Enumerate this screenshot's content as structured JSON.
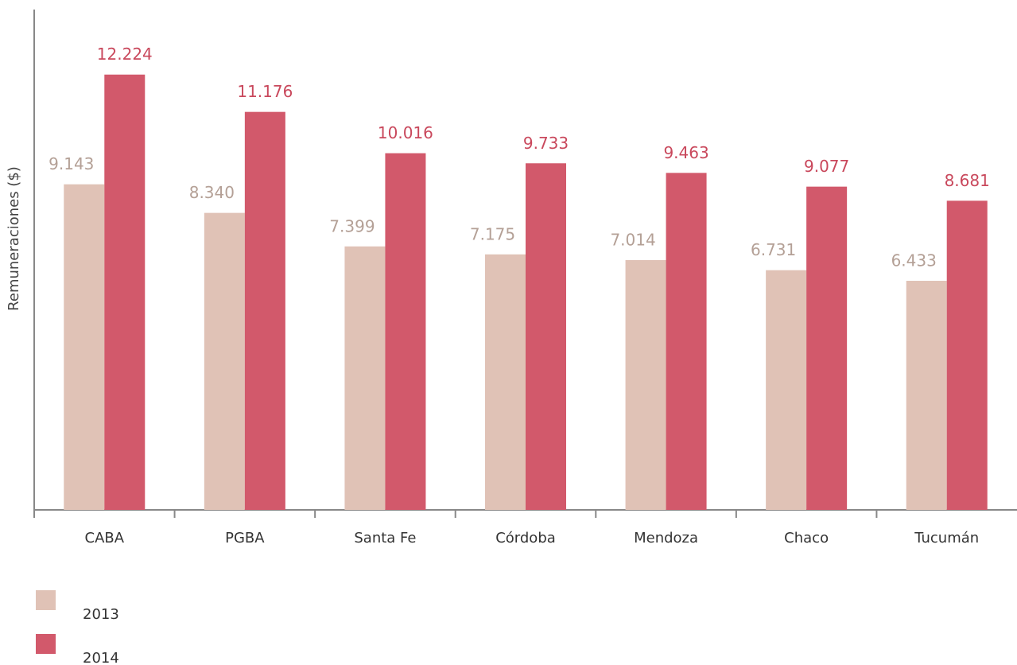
{
  "chart_data": {
    "type": "bar",
    "y_label": "Remuneraciones ($)",
    "categories": [
      "CABA",
      "PGBA",
      "Santa Fe",
      "Córdoba",
      "Mendoza",
      "Chaco",
      "Tucumán"
    ],
    "series": [
      {
        "name": "2013",
        "color": "#e0c2b6",
        "label_color": "#b4a096",
        "values": [
          9143,
          8340,
          7399,
          7175,
          7014,
          6731,
          6433
        ],
        "value_labels": [
          "9.143",
          "8.340",
          "7.399",
          "7.175",
          "7.014",
          "6.731",
          "6.433"
        ]
      },
      {
        "name": "2014",
        "color": "#d2596b",
        "label_color": "#c9485c",
        "values": [
          12224,
          11176,
          10016,
          9733,
          9463,
          9077,
          8681
        ],
        "value_labels": [
          "12.224",
          "11.176",
          "10.016",
          "9.733",
          "9.463",
          "9.077",
          "8.681"
        ]
      }
    ],
    "ylim": [
      0,
      14050
    ]
  }
}
